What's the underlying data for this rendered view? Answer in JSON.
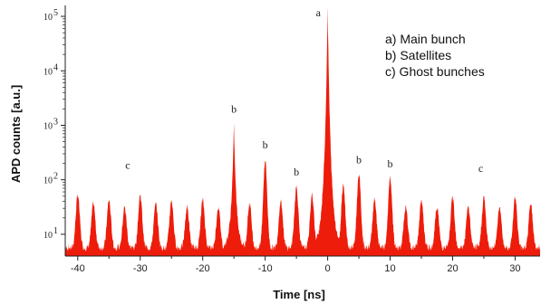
{
  "chart_data": {
    "type": "area",
    "title": "",
    "xlabel": "Time [ns]",
    "ylabel": "APD counts [a.u.]",
    "xlim": [
      -42,
      34
    ],
    "ylim_exponent": [
      0.6,
      5.2
    ],
    "y_scale": "log",
    "x_ticks": [
      -40,
      -30,
      -20,
      -10,
      0,
      10,
      20,
      30
    ],
    "y_ticks": [
      {
        "exp": 1,
        "base": "10",
        "sup": "1"
      },
      {
        "exp": 2,
        "base": "10",
        "sup": "2"
      },
      {
        "exp": 3,
        "base": "10",
        "sup": "3"
      },
      {
        "exp": 4,
        "base": "10",
        "sup": "4"
      },
      {
        "exp": 5,
        "base": "10",
        "sup": "5"
      }
    ],
    "series_color": "#ee1c0a",
    "baseline_exp": 0.72,
    "peaks": [
      {
        "x": -40,
        "value": 50
      },
      {
        "x": -37.5,
        "value": 35
      },
      {
        "x": -35,
        "value": 40
      },
      {
        "x": -32.5,
        "value": 30
      },
      {
        "x": -30,
        "value": 50
      },
      {
        "x": -27.5,
        "value": 35
      },
      {
        "x": -25,
        "value": 40
      },
      {
        "x": -22.5,
        "value": 30
      },
      {
        "x": -20,
        "value": 40
      },
      {
        "x": -17.5,
        "value": 30
      },
      {
        "x": -15,
        "value": 1000
      },
      {
        "x": -12.5,
        "value": 35
      },
      {
        "x": -10,
        "value": 220
      },
      {
        "x": -7.5,
        "value": 40
      },
      {
        "x": -5,
        "value": 70
      },
      {
        "x": -2.5,
        "value": 50
      },
      {
        "x": 0,
        "value": 130000
      },
      {
        "x": 2.5,
        "value": 80
      },
      {
        "x": 5,
        "value": 120
      },
      {
        "x": 7.5,
        "value": 40
      },
      {
        "x": 10,
        "value": 100
      },
      {
        "x": 12.5,
        "value": 30
      },
      {
        "x": 15,
        "value": 40
      },
      {
        "x": 17.5,
        "value": 30
      },
      {
        "x": 20,
        "value": 45
      },
      {
        "x": 22.5,
        "value": 30
      },
      {
        "x": 25,
        "value": 45
      },
      {
        "x": 27.5,
        "value": 30
      },
      {
        "x": 30,
        "value": 45
      },
      {
        "x": 32.5,
        "value": 35
      }
    ],
    "annotations": [
      {
        "text": "a",
        "x": -1.5,
        "value": 100000
      },
      {
        "text": "b",
        "x": -15,
        "value": 1700
      },
      {
        "text": "b",
        "x": -10,
        "value": 380
      },
      {
        "text": "b",
        "x": -5,
        "value": 120
      },
      {
        "text": "b",
        "x": 5,
        "value": 200
      },
      {
        "text": "b",
        "x": 10,
        "value": 170
      },
      {
        "text": "c",
        "x": -32,
        "value": 160
      },
      {
        "text": "c",
        "x": 24.5,
        "value": 140
      }
    ],
    "legend": {
      "placement": "top-right",
      "entries": [
        "a) Main bunch",
        "b) Satellites",
        "c) Ghost bunches"
      ]
    }
  }
}
